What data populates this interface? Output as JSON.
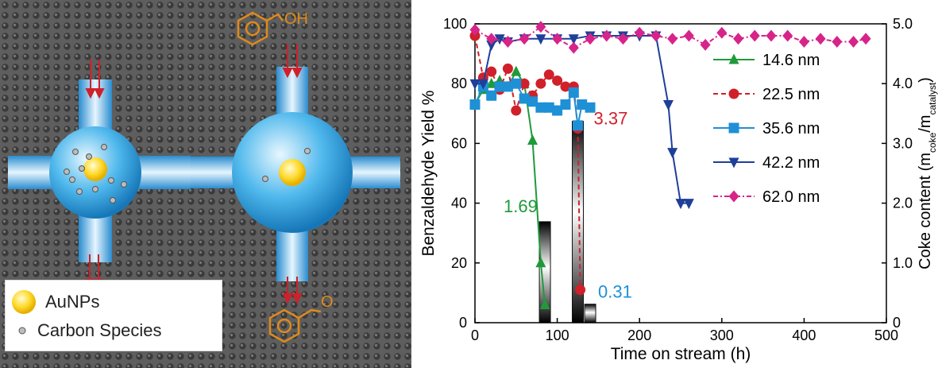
{
  "schematic": {
    "legend": {
      "aunps": "AuNPs",
      "carbon": "Carbon Species"
    },
    "molecule_top_label": "OH",
    "molecule_bottom_label": "O"
  },
  "chart_data": {
    "type": "line",
    "xlabel": "Time on stream (h)",
    "ylabel_left": "Benzaldehyde Yield %",
    "ylabel_right": "Coke content (m",
    "ylabel_right_sub1": "coke",
    "ylabel_right_mid": "/m",
    "ylabel_right_sub2": "catalyst",
    "ylabel_right_end": ")",
    "xlim": [
      0,
      500
    ],
    "ylim_left": [
      0,
      100
    ],
    "ylim_right": [
      0,
      5.0
    ],
    "x_ticks": [
      "0",
      "100",
      "200",
      "300",
      "400",
      "500"
    ],
    "y_ticks_left": [
      "0",
      "20",
      "40",
      "60",
      "80",
      "100"
    ],
    "y_ticks_right": [
      "0",
      "1.0",
      "2.0",
      "3.0",
      "4.0",
      "5.0"
    ],
    "legend_position": "right",
    "series": [
      {
        "name": "14.6 nm",
        "color": "#1f9a3a",
        "marker": "triangle-up",
        "dash": "",
        "x": [
          0,
          10,
          20,
          30,
          40,
          50,
          60,
          70,
          80,
          85
        ],
        "y": [
          73,
          78,
          80,
          81,
          79,
          84,
          80,
          61,
          20,
          6
        ]
      },
      {
        "name": "22.5 nm",
        "color": "#d0202a",
        "marker": "circle",
        "dash": "6,4",
        "x": [
          0,
          10,
          20,
          30,
          40,
          50,
          60,
          70,
          80,
          90,
          100,
          110,
          120,
          125,
          128
        ],
        "y": [
          96,
          82,
          84,
          78,
          85,
          71,
          80,
          76,
          80,
          83,
          81,
          79,
          79,
          65,
          11
        ]
      },
      {
        "name": "35.6 nm",
        "color": "#1e90d6",
        "marker": "square",
        "dash": "",
        "x": [
          0,
          10,
          20,
          30,
          40,
          50,
          60,
          70,
          80,
          90,
          100,
          110,
          120,
          125,
          130,
          140
        ],
        "y": [
          73,
          79,
          76,
          79,
          79,
          80,
          75,
          74,
          72,
          72,
          71,
          73,
          77,
          66,
          73,
          72
        ]
      },
      {
        "name": "42.2 nm",
        "color": "#1f3f99",
        "marker": "triangle-down",
        "dash": "",
        "x": [
          0,
          10,
          20,
          30,
          40,
          60,
          80,
          100,
          120,
          140,
          160,
          180,
          200,
          220,
          235,
          240,
          250,
          260
        ],
        "y": [
          80,
          80,
          93,
          95,
          94,
          95,
          95,
          95,
          95,
          96,
          96,
          96,
          96,
          96,
          73,
          57,
          40,
          40
        ]
      },
      {
        "name": "62.0 nm",
        "color": "#d6248a",
        "marker": "diamond",
        "dash": "6,3,2,3",
        "x": [
          0,
          20,
          40,
          60,
          80,
          100,
          120,
          140,
          160,
          180,
          200,
          220,
          240,
          260,
          280,
          300,
          320,
          340,
          360,
          380,
          400,
          420,
          440,
          460,
          475
        ],
        "y": [
          98,
          95,
          94,
          95,
          99,
          95,
          92,
          95,
          96,
          95,
          97,
          96,
          95,
          96,
          93,
          97,
          95,
          96,
          96,
          96,
          94,
          95,
          94,
          94,
          95
        ]
      }
    ],
    "coke_bars": [
      {
        "x": 85,
        "value": 1.69,
        "label": "1.69",
        "color": "#1f9a3a"
      },
      {
        "x": 125,
        "value": 3.37,
        "label": "3.37",
        "color": "#d0202a"
      },
      {
        "x": 140,
        "value": 0.31,
        "label": "0.31",
        "color": "#1e90d6"
      }
    ]
  }
}
